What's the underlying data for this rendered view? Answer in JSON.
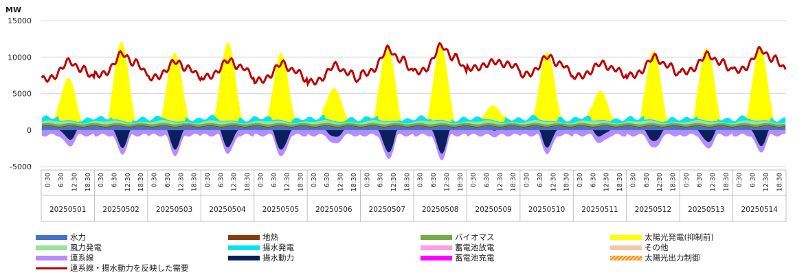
{
  "chart_data": {
    "type": "area",
    "unit_label": "MW",
    "y_ticks": [
      -5000,
      0,
      5000,
      10000,
      15000
    ],
    "y_tick_labels": [
      "-5000",
      "0",
      "5000",
      "10000",
      "15000"
    ],
    "ylim": [
      -5000,
      15000
    ],
    "time_tick_labels": [
      "0:30",
      "6:30",
      "12:30",
      "18:30"
    ],
    "dates": [
      "20250501",
      "20250502",
      "20250503",
      "20250504",
      "20250505",
      "20250506",
      "20250507",
      "20250508",
      "20250509",
      "20250510",
      "20250511",
      "20250512",
      "20250513",
      "20250514"
    ],
    "solar_peak_mw": [
      5800,
      10800,
      9400,
      10700,
      9200,
      4500,
      10100,
      10000,
      2000,
      9400,
      4000,
      9400,
      10000,
      9800
    ],
    "demand_peak_mw": [
      10300,
      11500,
      10200,
      10400,
      10000,
      9700,
      12300,
      12800,
      9700,
      11000,
      9800,
      10900,
      11200,
      12000
    ],
    "demand_min_mw": [
      7000,
      7600,
      7200,
      7300,
      6800,
      6600,
      7800,
      8000,
      8500,
      7600,
      7400,
      7500,
      8000,
      8200
    ],
    "pumping_min_mw": [
      -2200,
      -3200,
      -3400,
      -3200,
      -3700,
      -2000,
      -4000,
      -4000,
      -800,
      -3200,
      -1800,
      -2600,
      -2600,
      -3000
    ],
    "series": [
      {
        "key": "hydro",
        "name": "水力",
        "color": "#4472c4"
      },
      {
        "key": "geothermal",
        "name": "地熱",
        "color": "#843c0c"
      },
      {
        "key": "biomass",
        "name": "バイオマス",
        "color": "#70ad47"
      },
      {
        "key": "solar",
        "name": "太陽光発電(抑制前)",
        "color": "#ffff00"
      },
      {
        "key": "wind",
        "name": "風力発電",
        "color": "#9be29b"
      },
      {
        "key": "pumped_gen",
        "name": "揚水発電",
        "color": "#00e5ee"
      },
      {
        "key": "battery_discharge",
        "name": "蓄電池放電",
        "color": "#ff9ee6"
      },
      {
        "key": "other",
        "name": "その他",
        "color": "#f4c7a8"
      },
      {
        "key": "interconnector",
        "name": "連系線",
        "color": "#b48cff"
      },
      {
        "key": "pumping",
        "name": "揚水動力",
        "color": "#0b1f5c"
      },
      {
        "key": "battery_charge",
        "name": "蓄電池充電",
        "color": "#ff00ff"
      },
      {
        "key": "solar_curtail",
        "name": "太陽光出力制御",
        "color": "#f28c28"
      },
      {
        "key": "demand",
        "name": "連系線・揚水動力を反映した需要",
        "color": "#c00000"
      }
    ]
  }
}
